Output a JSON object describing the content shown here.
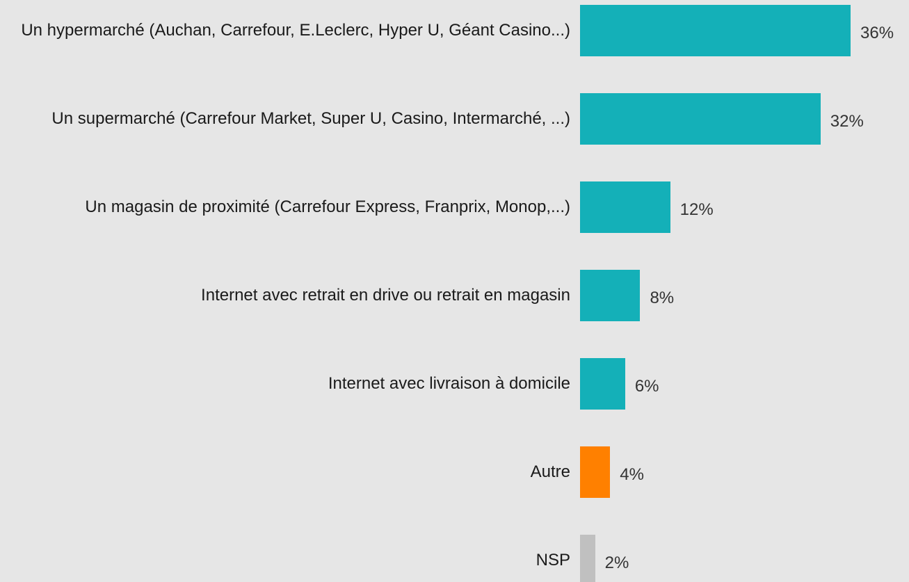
{
  "chart_data": {
    "type": "bar",
    "orientation": "horizontal",
    "categories": [
      "Un hypermarché (Auchan, Carrefour, E.Leclerc, Hyper U, Géant Casino...)",
      "Un supermarché (Carrefour Market, Super U, Casino, Intermarché, ...)",
      "Un magasin de proximité (Carrefour Express, Franprix, Monop,...)",
      "Internet avec retrait en drive ou retrait en magasin",
      "Internet avec livraison à domicile",
      "Autre",
      "NSP"
    ],
    "values": [
      36,
      32,
      12,
      8,
      6,
      4,
      2
    ],
    "value_labels": [
      "36%",
      "32%",
      "12%",
      "8%",
      "6%",
      "4%",
      "2%"
    ],
    "colors": [
      "#14b0b8",
      "#14b0b8",
      "#14b0b8",
      "#14b0b8",
      "#14b0b8",
      "#ff8000",
      "#c0c0c0"
    ]
  }
}
